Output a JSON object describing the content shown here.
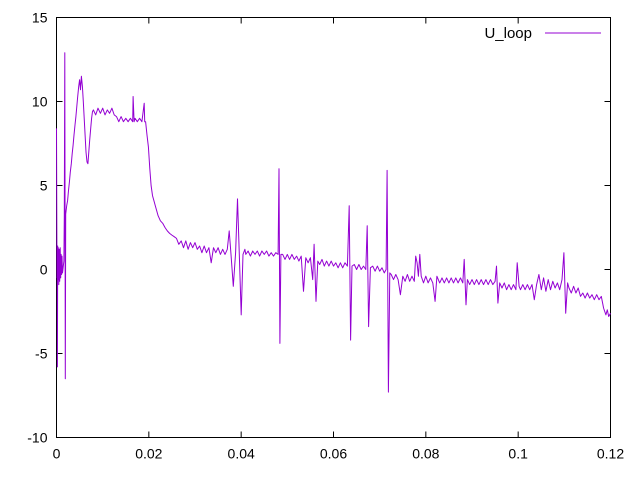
{
  "window": {
    "background": "#ffffff"
  },
  "legend": {
    "label": "U_loop",
    "position": "top-right"
  },
  "colors": {
    "line": "#9400d3",
    "axis": "#000000",
    "text": "#000000",
    "background": "#ffffff"
  },
  "chart_data": {
    "type": "line",
    "title": "",
    "xlabel": "",
    "ylabel": "",
    "grid": false,
    "legend_position": "top-right-inside",
    "xlim": [
      0,
      0.12
    ],
    "ylim": [
      -10,
      15
    ],
    "xticks": [
      0,
      0.02,
      0.04,
      0.06,
      0.08,
      0.1,
      0.12
    ],
    "xtick_labels": [
      "0",
      "0.02",
      "0.04",
      "0.06",
      "0.08",
      "0.1",
      "0.12"
    ],
    "yticks": [
      -10,
      -5,
      0,
      5,
      10,
      15
    ],
    "ytick_labels": [
      "-10",
      "-5",
      "0",
      "5",
      "10",
      "15"
    ],
    "series": [
      {
        "name": "U_loop",
        "color": "#9400d3",
        "points": [
          [
            0.0,
            8.4
          ],
          [
            0.0001,
            -0.5
          ],
          [
            0.00015,
            1.3
          ],
          [
            0.0002,
            -5.8
          ],
          [
            0.00025,
            1.4
          ],
          [
            0.0003,
            -0.6
          ],
          [
            0.0004,
            1.3
          ],
          [
            0.0005,
            -0.9
          ],
          [
            0.0006,
            1.2
          ],
          [
            0.0007,
            -0.7
          ],
          [
            0.0008,
            1.3
          ],
          [
            0.0009,
            -0.5
          ],
          [
            0.001,
            0.9
          ],
          [
            0.0011,
            -0.3
          ],
          [
            0.0012,
            0.8
          ],
          [
            0.0013,
            -0.2
          ],
          [
            0.0016,
            0.5
          ],
          [
            0.0017,
            3.2
          ],
          [
            0.0018,
            12.9
          ],
          [
            0.0019,
            -6.5
          ],
          [
            0.002,
            3.3
          ],
          [
            0.0022,
            3.8
          ],
          [
            0.0024,
            4.1
          ],
          [
            0.0026,
            4.7
          ],
          [
            0.0028,
            5.2
          ],
          [
            0.003,
            5.8
          ],
          [
            0.0032,
            6.3
          ],
          [
            0.0034,
            6.9
          ],
          [
            0.0036,
            7.4
          ],
          [
            0.0038,
            8.0
          ],
          [
            0.004,
            8.6
          ],
          [
            0.0042,
            9.1
          ],
          [
            0.0044,
            9.7
          ],
          [
            0.0046,
            10.3
          ],
          [
            0.0048,
            10.9
          ],
          [
            0.005,
            11.3
          ],
          [
            0.0052,
            10.7
          ],
          [
            0.0054,
            11.5
          ],
          [
            0.0056,
            10.9
          ],
          [
            0.0058,
            10.0
          ],
          [
            0.006,
            9.0
          ],
          [
            0.0062,
            8.0
          ],
          [
            0.0064,
            7.0
          ],
          [
            0.0066,
            6.4
          ],
          [
            0.0068,
            6.3
          ],
          [
            0.007,
            7.0
          ],
          [
            0.0072,
            7.7
          ],
          [
            0.0074,
            8.4
          ],
          [
            0.0076,
            9.0
          ],
          [
            0.0078,
            9.4
          ],
          [
            0.008,
            9.5
          ],
          [
            0.0085,
            9.2
          ],
          [
            0.009,
            9.6
          ],
          [
            0.0095,
            9.3
          ],
          [
            0.01,
            9.6
          ],
          [
            0.0105,
            9.2
          ],
          [
            0.011,
            9.5
          ],
          [
            0.0115,
            9.3
          ],
          [
            0.012,
            9.6
          ],
          [
            0.0125,
            9.2
          ],
          [
            0.013,
            9.1
          ],
          [
            0.0135,
            8.8
          ],
          [
            0.014,
            9.1
          ],
          [
            0.0145,
            8.8
          ],
          [
            0.015,
            9.0
          ],
          [
            0.0155,
            8.8
          ],
          [
            0.016,
            9.0
          ],
          [
            0.0165,
            8.8
          ],
          [
            0.0166,
            10.3
          ],
          [
            0.0168,
            8.8
          ],
          [
            0.017,
            9.0
          ],
          [
            0.0175,
            8.8
          ],
          [
            0.018,
            9.0
          ],
          [
            0.0185,
            8.8
          ],
          [
            0.019,
            9.9
          ],
          [
            0.0191,
            8.8
          ],
          [
            0.0193,
            8.8
          ],
          [
            0.0196,
            8.0
          ],
          [
            0.0199,
            7.3
          ],
          [
            0.0202,
            6.0
          ],
          [
            0.0205,
            5.0
          ],
          [
            0.0208,
            4.4
          ],
          [
            0.0211,
            4.1
          ],
          [
            0.0214,
            3.8
          ],
          [
            0.0217,
            3.5
          ],
          [
            0.022,
            3.2
          ],
          [
            0.0225,
            2.9
          ],
          [
            0.023,
            2.75
          ],
          [
            0.0235,
            2.5
          ],
          [
            0.024,
            2.3
          ],
          [
            0.0245,
            2.15
          ],
          [
            0.025,
            2.05
          ],
          [
            0.0255,
            1.95
          ],
          [
            0.026,
            1.85
          ],
          [
            0.0265,
            1.5
          ],
          [
            0.027,
            1.7
          ],
          [
            0.0275,
            1.3
          ],
          [
            0.028,
            1.7
          ],
          [
            0.0285,
            1.2
          ],
          [
            0.029,
            1.6
          ],
          [
            0.0295,
            1.3
          ],
          [
            0.03,
            1.6
          ],
          [
            0.0305,
            1.2
          ],
          [
            0.031,
            1.4
          ],
          [
            0.0315,
            1.0
          ],
          [
            0.032,
            1.4
          ],
          [
            0.0325,
            1.0
          ],
          [
            0.033,
            1.3
          ],
          [
            0.0335,
            0.4
          ],
          [
            0.034,
            1.3
          ],
          [
            0.0345,
            1.0
          ],
          [
            0.035,
            1.3
          ],
          [
            0.0355,
            0.9
          ],
          [
            0.036,
            1.2
          ],
          [
            0.0365,
            0.9
          ],
          [
            0.037,
            1.2
          ],
          [
            0.0374,
            2.3
          ],
          [
            0.0378,
            0.9
          ],
          [
            0.0383,
            -1.0
          ],
          [
            0.0388,
            1.0
          ],
          [
            0.0392,
            4.2
          ],
          [
            0.0396,
            0.9
          ],
          [
            0.04,
            -2.7
          ],
          [
            0.0404,
            0.9
          ],
          [
            0.0408,
            1.2
          ],
          [
            0.041,
            0.9
          ],
          [
            0.0415,
            1.1
          ],
          [
            0.042,
            0.8
          ],
          [
            0.0425,
            1.1
          ],
          [
            0.043,
            0.9
          ],
          [
            0.0435,
            1.1
          ],
          [
            0.044,
            0.8
          ],
          [
            0.0445,
            1.1
          ],
          [
            0.045,
            0.9
          ],
          [
            0.0455,
            1.1
          ],
          [
            0.046,
            0.8
          ],
          [
            0.0465,
            1.0
          ],
          [
            0.047,
            0.8
          ],
          [
            0.0475,
            1.0
          ],
          [
            0.048,
            0.9
          ],
          [
            0.0482,
            6.0
          ],
          [
            0.0484,
            -4.4
          ],
          [
            0.0486,
            0.9
          ],
          [
            0.049,
            0.9
          ],
          [
            0.0495,
            0.6
          ],
          [
            0.05,
            0.9
          ],
          [
            0.0505,
            0.6
          ],
          [
            0.051,
            0.9
          ],
          [
            0.0515,
            0.6
          ],
          [
            0.052,
            0.8
          ],
          [
            0.0525,
            0.5
          ],
          [
            0.053,
            0.8
          ],
          [
            0.0535,
            -1.3
          ],
          [
            0.054,
            0.7
          ],
          [
            0.0545,
            0.4
          ],
          [
            0.055,
            0.7
          ],
          [
            0.0555,
            -0.6
          ],
          [
            0.0558,
            1.5
          ],
          [
            0.0562,
            -1.9
          ],
          [
            0.0566,
            0.5
          ],
          [
            0.057,
            0.3
          ],
          [
            0.0575,
            0.6
          ],
          [
            0.058,
            0.2
          ],
          [
            0.0585,
            0.5
          ],
          [
            0.059,
            0.2
          ],
          [
            0.0595,
            0.5
          ],
          [
            0.06,
            0.2
          ],
          [
            0.0605,
            0.4
          ],
          [
            0.061,
            0.1
          ],
          [
            0.0615,
            0.4
          ],
          [
            0.062,
            0.1
          ],
          [
            0.0625,
            0.4
          ],
          [
            0.063,
            0.2
          ],
          [
            0.0634,
            3.8
          ],
          [
            0.0637,
            -4.2
          ],
          [
            0.064,
            0.2
          ],
          [
            0.0645,
            0.3
          ],
          [
            0.065,
            0.0
          ],
          [
            0.0655,
            0.3
          ],
          [
            0.066,
            0.0
          ],
          [
            0.0665,
            0.2
          ],
          [
            0.067,
            0.0
          ],
          [
            0.0673,
            2.6
          ],
          [
            0.0676,
            -3.4
          ],
          [
            0.068,
            0.1
          ],
          [
            0.0685,
            0.2
          ],
          [
            0.069,
            -0.1
          ],
          [
            0.0695,
            0.2
          ],
          [
            0.07,
            -0.1
          ],
          [
            0.0705,
            0.1
          ],
          [
            0.071,
            -0.2
          ],
          [
            0.0714,
            0.0
          ],
          [
            0.0716,
            5.9
          ],
          [
            0.0719,
            -7.3
          ],
          [
            0.0722,
            -0.2
          ],
          [
            0.0725,
            -0.3
          ],
          [
            0.073,
            -0.6
          ],
          [
            0.0735,
            -0.3
          ],
          [
            0.074,
            -0.6
          ],
          [
            0.0745,
            -1.5
          ],
          [
            0.075,
            -0.4
          ],
          [
            0.0755,
            -0.7
          ],
          [
            0.076,
            -0.3
          ],
          [
            0.0765,
            -0.7
          ],
          [
            0.077,
            -0.4
          ],
          [
            0.0775,
            -0.7
          ],
          [
            0.0778,
            0.8
          ],
          [
            0.0781,
            0.4
          ],
          [
            0.0784,
            -0.4
          ],
          [
            0.0787,
            0.9
          ],
          [
            0.079,
            -0.4
          ],
          [
            0.0795,
            -0.8
          ],
          [
            0.08,
            -0.4
          ],
          [
            0.0805,
            -0.8
          ],
          [
            0.081,
            -0.5
          ],
          [
            0.0815,
            -0.8
          ],
          [
            0.082,
            -1.9
          ],
          [
            0.0824,
            -0.4
          ],
          [
            0.083,
            -0.8
          ],
          [
            0.0835,
            -0.5
          ],
          [
            0.084,
            -0.8
          ],
          [
            0.0845,
            -0.5
          ],
          [
            0.085,
            -0.8
          ],
          [
            0.0855,
            -0.5
          ],
          [
            0.086,
            -0.8
          ],
          [
            0.0865,
            -0.5
          ],
          [
            0.087,
            -0.8
          ],
          [
            0.0875,
            -0.5
          ],
          [
            0.088,
            -0.8
          ],
          [
            0.0883,
            0.6
          ],
          [
            0.0887,
            -2.1
          ],
          [
            0.089,
            -0.6
          ],
          [
            0.0895,
            -0.9
          ],
          [
            0.09,
            -0.6
          ],
          [
            0.0905,
            -0.9
          ],
          [
            0.091,
            -0.6
          ],
          [
            0.0915,
            -0.9
          ],
          [
            0.092,
            -0.6
          ],
          [
            0.0925,
            -0.9
          ],
          [
            0.093,
            -0.6
          ],
          [
            0.0935,
            -0.9
          ],
          [
            0.094,
            -0.6
          ],
          [
            0.0945,
            -0.9
          ],
          [
            0.095,
            -0.7
          ],
          [
            0.0953,
            0.2
          ],
          [
            0.0956,
            -2.0
          ],
          [
            0.096,
            -0.8
          ],
          [
            0.0965,
            -1.1
          ],
          [
            0.097,
            -0.8
          ],
          [
            0.0975,
            -1.2
          ],
          [
            0.098,
            -0.9
          ],
          [
            0.0985,
            -1.2
          ],
          [
            0.099,
            -0.9
          ],
          [
            0.0995,
            -1.2
          ],
          [
            0.0998,
            0.4
          ],
          [
            0.1002,
            -1.0
          ],
          [
            0.1005,
            -1.2
          ],
          [
            0.101,
            -0.9
          ],
          [
            0.1015,
            -1.2
          ],
          [
            0.102,
            -0.9
          ],
          [
            0.1025,
            -1.2
          ],
          [
            0.103,
            -0.9
          ],
          [
            0.1035,
            -1.8
          ],
          [
            0.104,
            -0.9
          ],
          [
            0.1045,
            -0.3
          ],
          [
            0.105,
            -1.2
          ],
          [
            0.1055,
            -0.5
          ],
          [
            0.106,
            -1.3
          ],
          [
            0.1065,
            -0.6
          ],
          [
            0.107,
            -1.2
          ],
          [
            0.1075,
            -0.7
          ],
          [
            0.108,
            -1.1
          ],
          [
            0.1085,
            -0.8
          ],
          [
            0.109,
            -1.2
          ],
          [
            0.1095,
            -0.6
          ],
          [
            0.1099,
            1.0
          ],
          [
            0.1103,
            -2.6
          ],
          [
            0.1107,
            -0.8
          ],
          [
            0.111,
            -1.1
          ],
          [
            0.1115,
            -1.4
          ],
          [
            0.112,
            -1.0
          ],
          [
            0.1125,
            -1.4
          ],
          [
            0.113,
            -1.1
          ],
          [
            0.1135,
            -1.6
          ],
          [
            0.114,
            -1.4
          ],
          [
            0.1145,
            -1.7
          ],
          [
            0.115,
            -1.4
          ],
          [
            0.1155,
            -1.7
          ],
          [
            0.116,
            -1.5
          ],
          [
            0.1165,
            -1.8
          ],
          [
            0.117,
            -1.5
          ],
          [
            0.1175,
            -1.8
          ],
          [
            0.118,
            -1.6
          ],
          [
            0.1185,
            -2.3
          ],
          [
            0.119,
            -2.7
          ],
          [
            0.1193,
            -2.4
          ],
          [
            0.1196,
            -2.8
          ],
          [
            0.12,
            -2.6
          ]
        ]
      }
    ]
  }
}
